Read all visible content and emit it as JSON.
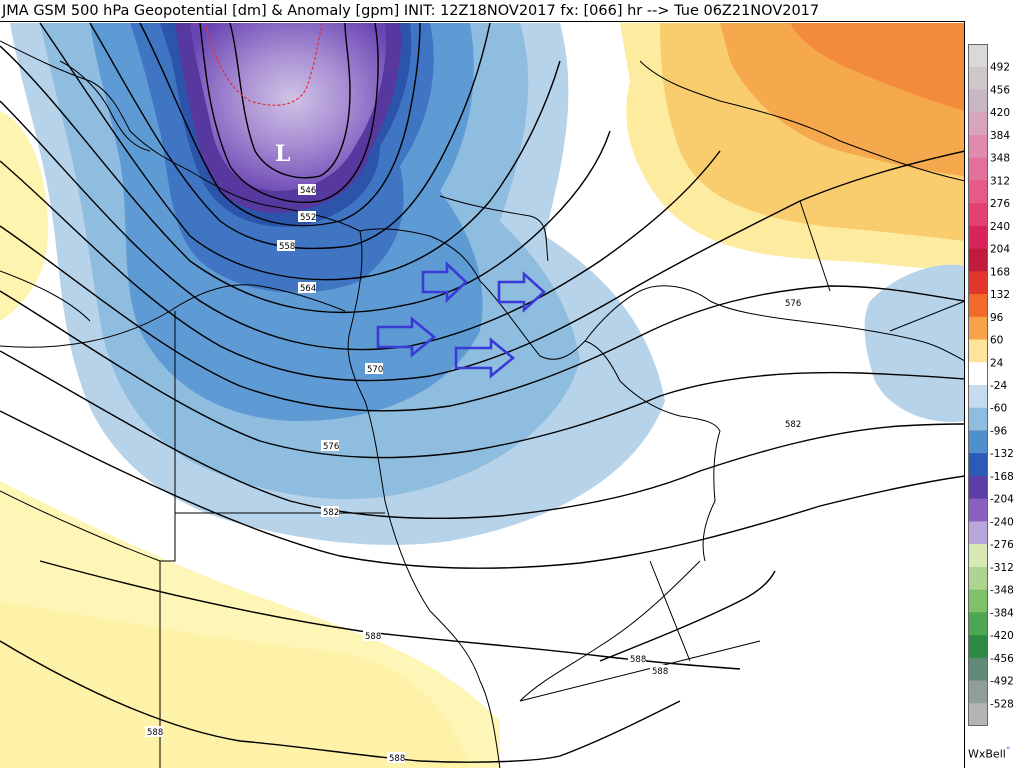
{
  "title": "JMA GSM 500 hPa Geopotential [dm] & Anomaly [gpm] INIT: 12Z18NOV2017 fx: [066] hr --> Tue 06Z21NOV2017",
  "low_marker": "L",
  "contour_labels": [
    "546",
    "552",
    "558",
    "564",
    "570",
    "576",
    "582",
    "576",
    "582",
    "588",
    "588",
    "588",
    "588",
    "588"
  ],
  "colorbar": {
    "labels": [
      "492",
      "456",
      "420",
      "384",
      "348",
      "312",
      "276",
      "240",
      "204",
      "168",
      "132",
      "96",
      "60",
      "24",
      "-24",
      "-60",
      "-96",
      "-132",
      "-168",
      "-204",
      "-240",
      "-276",
      "-312",
      "-348",
      "-384",
      "-420",
      "-456",
      "-492",
      "-528"
    ],
    "colors": [
      "#d9d9d9",
      "#cfc6cb",
      "#c9b6c3",
      "#d7a3bd",
      "#e08aad",
      "#e3709b",
      "#e55a87",
      "#e34270",
      "#d7245a",
      "#c21a3c",
      "#e2352c",
      "#f26a2b",
      "#f9a24a",
      "#fde49a",
      "#ffffff",
      "#c6dcee",
      "#8fbde0",
      "#4f8fcc",
      "#2b5bb6",
      "#5b3ea6",
      "#8b5fc0",
      "#b7a7da",
      "#d8e8b4",
      "#aed58f",
      "#7fc06a",
      "#4fa651",
      "#2d8a45",
      "#5f8a76",
      "#8f9e97",
      "#b4b4b4"
    ]
  },
  "credit": {
    "text": "WxBell"
  }
}
